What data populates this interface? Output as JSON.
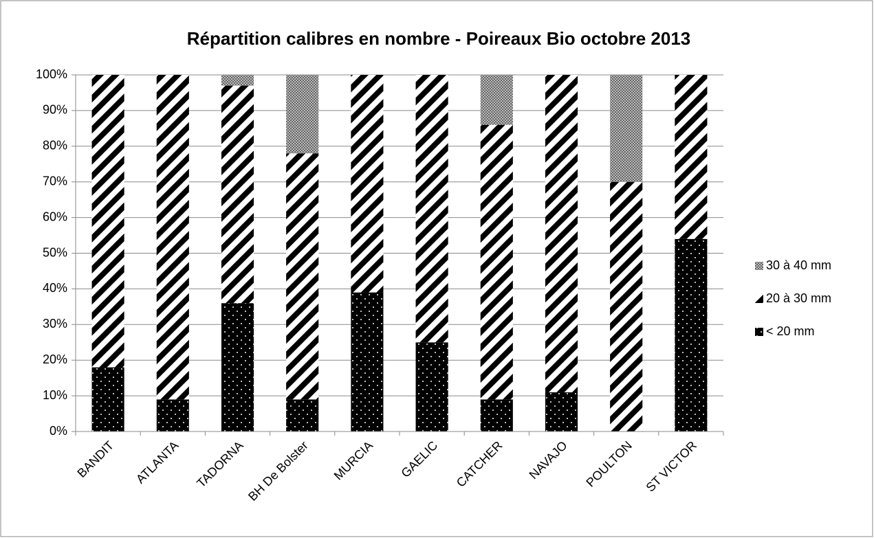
{
  "chart_data": {
    "type": "stacked_bar",
    "title": "Répartition calibres en nombre - Poireaux Bio octobre 2013",
    "categories": [
      "BANDIT",
      "ATLANTA",
      "TADORNA",
      "BH De Bolster",
      "MURCIA",
      "GAELIC",
      "CATCHER",
      "NAVAJO",
      "POULTON",
      "ST VICTOR"
    ],
    "series": [
      {
        "name": "< 20 mm",
        "color": "#000000",
        "pattern": "dots",
        "values": [
          18,
          9,
          36,
          9,
          39,
          25,
          9,
          11,
          0,
          54
        ]
      },
      {
        "name": "20 à 30 mm",
        "color": "#000000",
        "pattern": "stripes",
        "values": [
          82,
          91,
          61,
          69,
          61,
          75,
          77,
          89,
          70,
          46
        ]
      },
      {
        "name": "30 à 40 mm",
        "color": "#8c8c8c",
        "pattern": "checker",
        "values": [
          0,
          0,
          3,
          22,
          0,
          0,
          14,
          0,
          30,
          0
        ]
      }
    ],
    "ylim": [
      0,
      100
    ],
    "yticks": [
      {
        "value": 0,
        "label": "0%"
      },
      {
        "value": 10,
        "label": "10%"
      },
      {
        "value": 20,
        "label": "20%"
      },
      {
        "value": 30,
        "label": "30%"
      },
      {
        "value": 40,
        "label": "40%"
      },
      {
        "value": 50,
        "label": "50%"
      },
      {
        "value": 60,
        "label": "60%"
      },
      {
        "value": 70,
        "label": "70%"
      },
      {
        "value": 80,
        "label": "80%"
      },
      {
        "value": 90,
        "label": "90%"
      },
      {
        "value": 100,
        "label": "100%"
      }
    ],
    "grid": true,
    "legend": "right"
  }
}
